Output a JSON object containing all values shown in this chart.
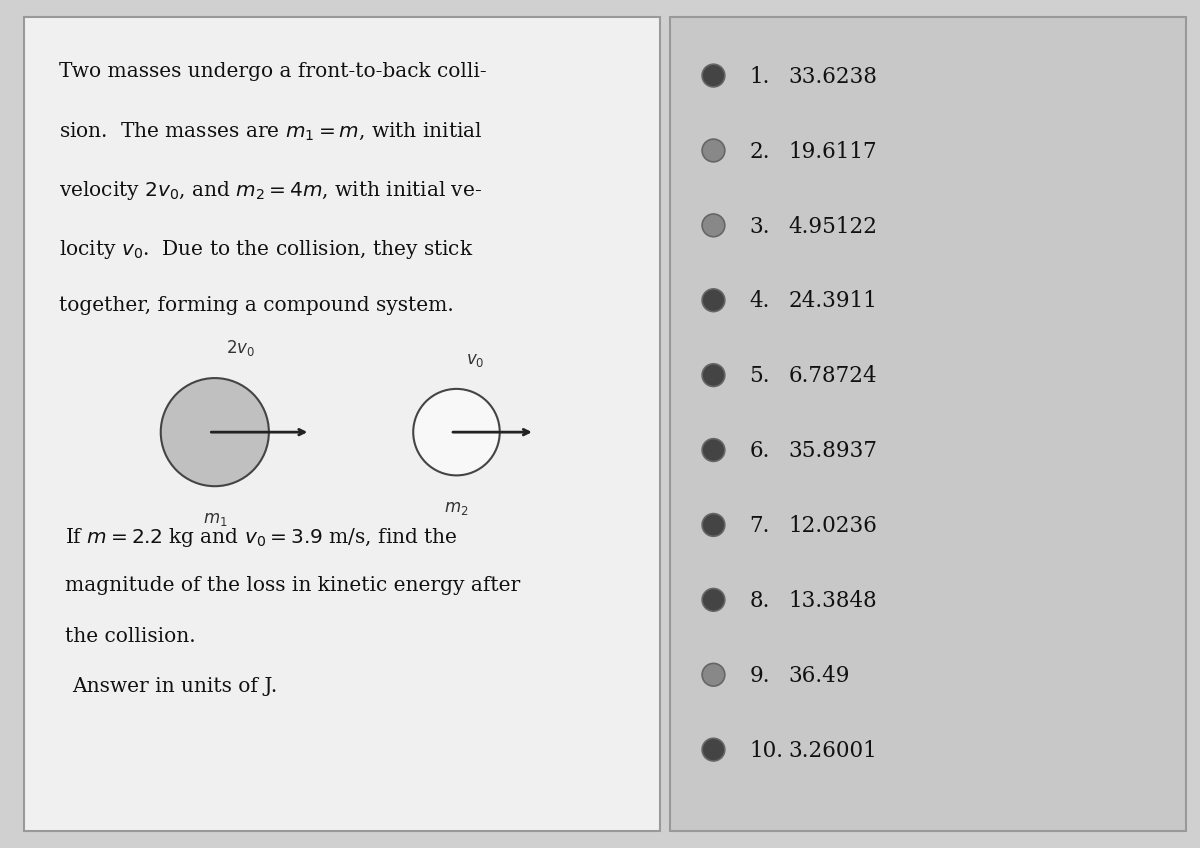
{
  "bg_color": "#d0d0d0",
  "left_panel_bg": "#f0f0f0",
  "right_panel_bg": "#c8c8c8",
  "question_text_lines": [
    "Two masses undergo a front-to-back colli-",
    "sion.  The masses are $m_1 = m$, with initial",
    "velocity $2v_0$, and $m_2 = 4m$, with initial ve-",
    "locity $v_0$.  Due to the collision, they stick",
    "together, forming a compound system."
  ],
  "question_extra_lines": [
    "If $m = 2.2$ kg and $v_0 = 3.9$ m/s, find the",
    "magnitude of the loss in kinetic energy after",
    "the collision.",
    "Answer in units of J."
  ],
  "choices": [
    "33.6238",
    "19.6117",
    "4.95122",
    "24.3911",
    "6.78724",
    "35.8937",
    "12.0236",
    "13.3848",
    "36.49",
    "3.26001"
  ],
  "circle1_fill": "#c0c0c0",
  "circle1_edge": "#444444",
  "circle2_fill": "#f8f8f8",
  "circle2_edge": "#444444",
  "arrow_color": "#222222",
  "label_color": "#333333",
  "text_color": "#111111",
  "choice_text_color": "#111111",
  "bullet_colors": [
    "#444444",
    "#888888",
    "#888888",
    "#444444",
    "#444444",
    "#444444",
    "#444444",
    "#444444",
    "#888888",
    "#444444"
  ],
  "font_size_question": 14.5,
  "font_size_choices": 15.5,
  "font_size_labels": 13
}
